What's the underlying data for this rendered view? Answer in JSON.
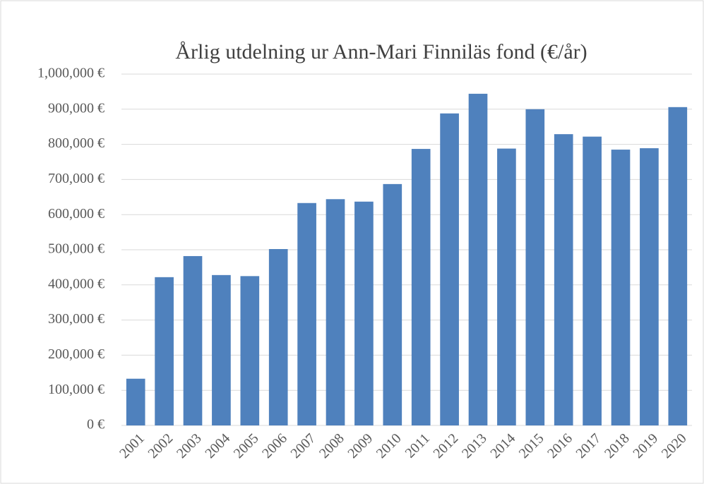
{
  "chart_data": {
    "type": "bar",
    "title": "Årlig utdelning ur Ann-Mari Finniläs fond (€/år)",
    "categories": [
      "2001",
      "2002",
      "2003",
      "2004",
      "2005",
      "2006",
      "2007",
      "2008",
      "2009",
      "2010",
      "2011",
      "2012",
      "2013",
      "2014",
      "2015",
      "2016",
      "2017",
      "2018",
      "2019",
      "2020"
    ],
    "values": [
      133000,
      422000,
      482000,
      428000,
      425000,
      502000,
      633000,
      644000,
      637000,
      687000,
      787000,
      888000,
      944000,
      788000,
      900000,
      829000,
      822000,
      785000,
      789000,
      906000
    ],
    "color": "#4f81bd",
    "ylim": [
      0,
      1000000
    ],
    "yticks": [
      {
        "value": 0,
        "label": "0 €"
      },
      {
        "value": 100000,
        "label": "100,000 €"
      },
      {
        "value": 200000,
        "label": "200,000 €"
      },
      {
        "value": 300000,
        "label": "300,000 €"
      },
      {
        "value": 400000,
        "label": "400,000 €"
      },
      {
        "value": 500000,
        "label": "500,000 €"
      },
      {
        "value": 600000,
        "label": "600,000 €"
      },
      {
        "value": 700000,
        "label": "700,000 €"
      },
      {
        "value": 800000,
        "label": "800,000 €"
      },
      {
        "value": 900000,
        "label": "900,000 €"
      },
      {
        "value": 1000000,
        "label": "1,000,000 €"
      }
    ],
    "grid": true
  }
}
